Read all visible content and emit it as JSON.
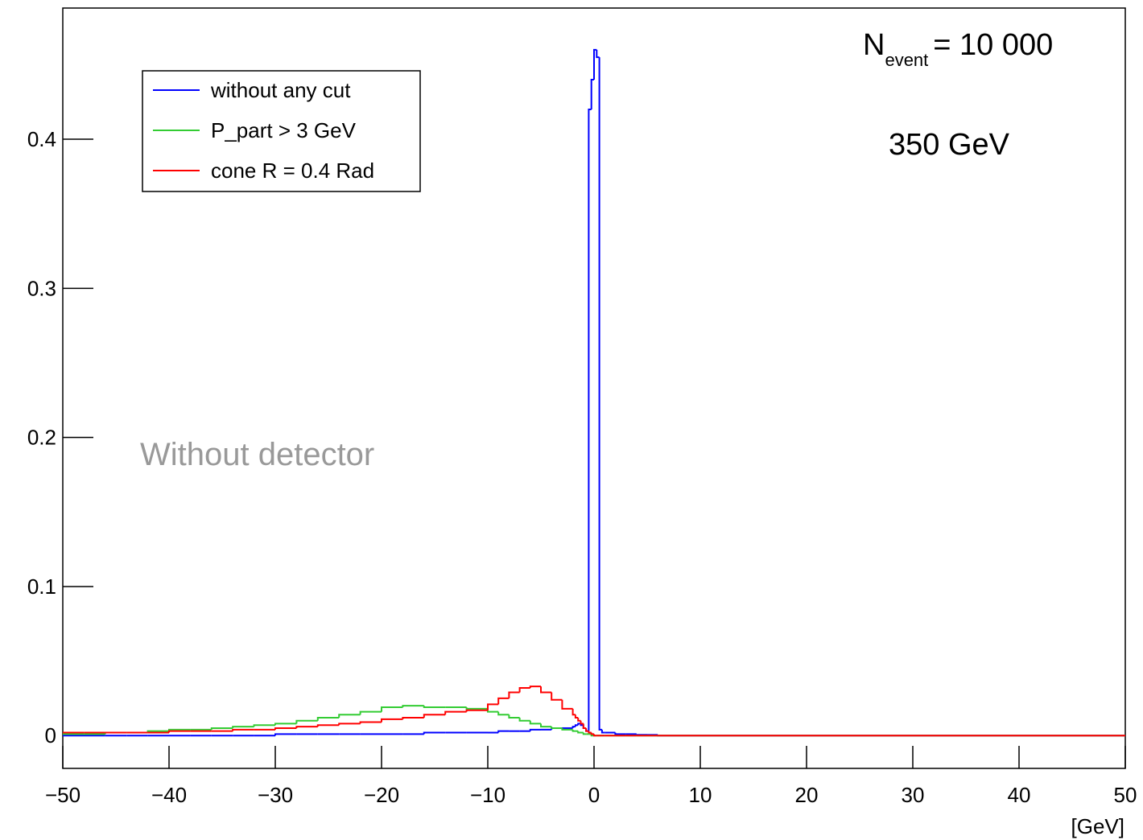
{
  "chart_data": {
    "type": "histogram",
    "bins": [
      -50,
      -48,
      -46,
      -44,
      -42,
      -40,
      -38,
      -36,
      -34,
      -32,
      -30,
      -28,
      -26,
      -24,
      -22,
      -20,
      -18,
      -16,
      -14,
      -12,
      -10,
      -9,
      -8,
      -7,
      -6,
      -5,
      -4,
      -3,
      -2,
      -1.75,
      -1.5,
      -1.25,
      -1,
      -0.75,
      -0.5,
      -0.25,
      0,
      0.25,
      0.5,
      0.75,
      1,
      2,
      3,
      4,
      5,
      6,
      50
    ],
    "series": [
      {
        "name": "without any cut",
        "color": "#0000ff",
        "values": [
          0,
          0,
          0,
          0,
          0,
          0,
          0,
          0,
          0,
          0,
          0.001,
          0.001,
          0.001,
          0.001,
          0.001,
          0.001,
          0.001,
          0.002,
          0.002,
          0.002,
          0.002,
          0.003,
          0.003,
          0.003,
          0.004,
          0.004,
          0.005,
          0.005,
          0.006,
          0.007,
          0.008,
          0.007,
          0.005,
          0.003,
          0.42,
          0.44,
          0.46,
          0.455,
          0.004,
          0.002,
          0.002,
          0.001,
          0.001,
          0.0005,
          0.0005,
          0
        ]
      },
      {
        "name": "P_part > 3 GeV",
        "color": "#33cc33",
        "values": [
          0.001,
          0.001,
          0.002,
          0.002,
          0.003,
          0.004,
          0.004,
          0.005,
          0.006,
          0.007,
          0.008,
          0.01,
          0.012,
          0.014,
          0.016,
          0.019,
          0.02,
          0.019,
          0.019,
          0.018,
          0.016,
          0.014,
          0.012,
          0.01,
          0.008,
          0.006,
          0.005,
          0.004,
          0.003,
          0.003,
          0.002,
          0.002,
          0.001,
          0.001,
          0.001,
          0,
          0,
          0,
          0,
          0,
          0,
          0,
          0,
          0,
          0,
          0
        ]
      },
      {
        "name": "cone R = 0.4 Rad",
        "color": "#ff0000",
        "values": [
          0.002,
          0.002,
          0.002,
          0.002,
          0.002,
          0.003,
          0.003,
          0.003,
          0.004,
          0.004,
          0.005,
          0.006,
          0.007,
          0.008,
          0.009,
          0.011,
          0.012,
          0.014,
          0.016,
          0.017,
          0.021,
          0.025,
          0.029,
          0.032,
          0.033,
          0.029,
          0.024,
          0.018,
          0.014,
          0.012,
          0.01,
          0.008,
          0.005,
          0.003,
          0.002,
          0.001,
          0,
          0,
          0,
          0,
          0,
          0,
          0,
          0,
          0,
          0
        ]
      }
    ],
    "xlim": [
      -50,
      50
    ],
    "ylim": [
      -0.022,
      0.488
    ],
    "xticks": [
      {
        "value": -50,
        "label": "−50"
      },
      {
        "value": -40,
        "label": "−40"
      },
      {
        "value": -30,
        "label": "−30"
      },
      {
        "value": -20,
        "label": "−20"
      },
      {
        "value": -10,
        "label": "−10"
      },
      0,
      10,
      20,
      30,
      40,
      50
    ],
    "yticks": [
      0,
      0.1,
      0.2,
      0.3,
      0.4
    ],
    "xlabel": "[GeV]",
    "annotations": {
      "n_event": {
        "symbol": "N",
        "subscript": "event",
        "rest": "= 10 000"
      },
      "energy": "350 GeV",
      "note": "Without detector"
    },
    "legend": "upper left"
  }
}
